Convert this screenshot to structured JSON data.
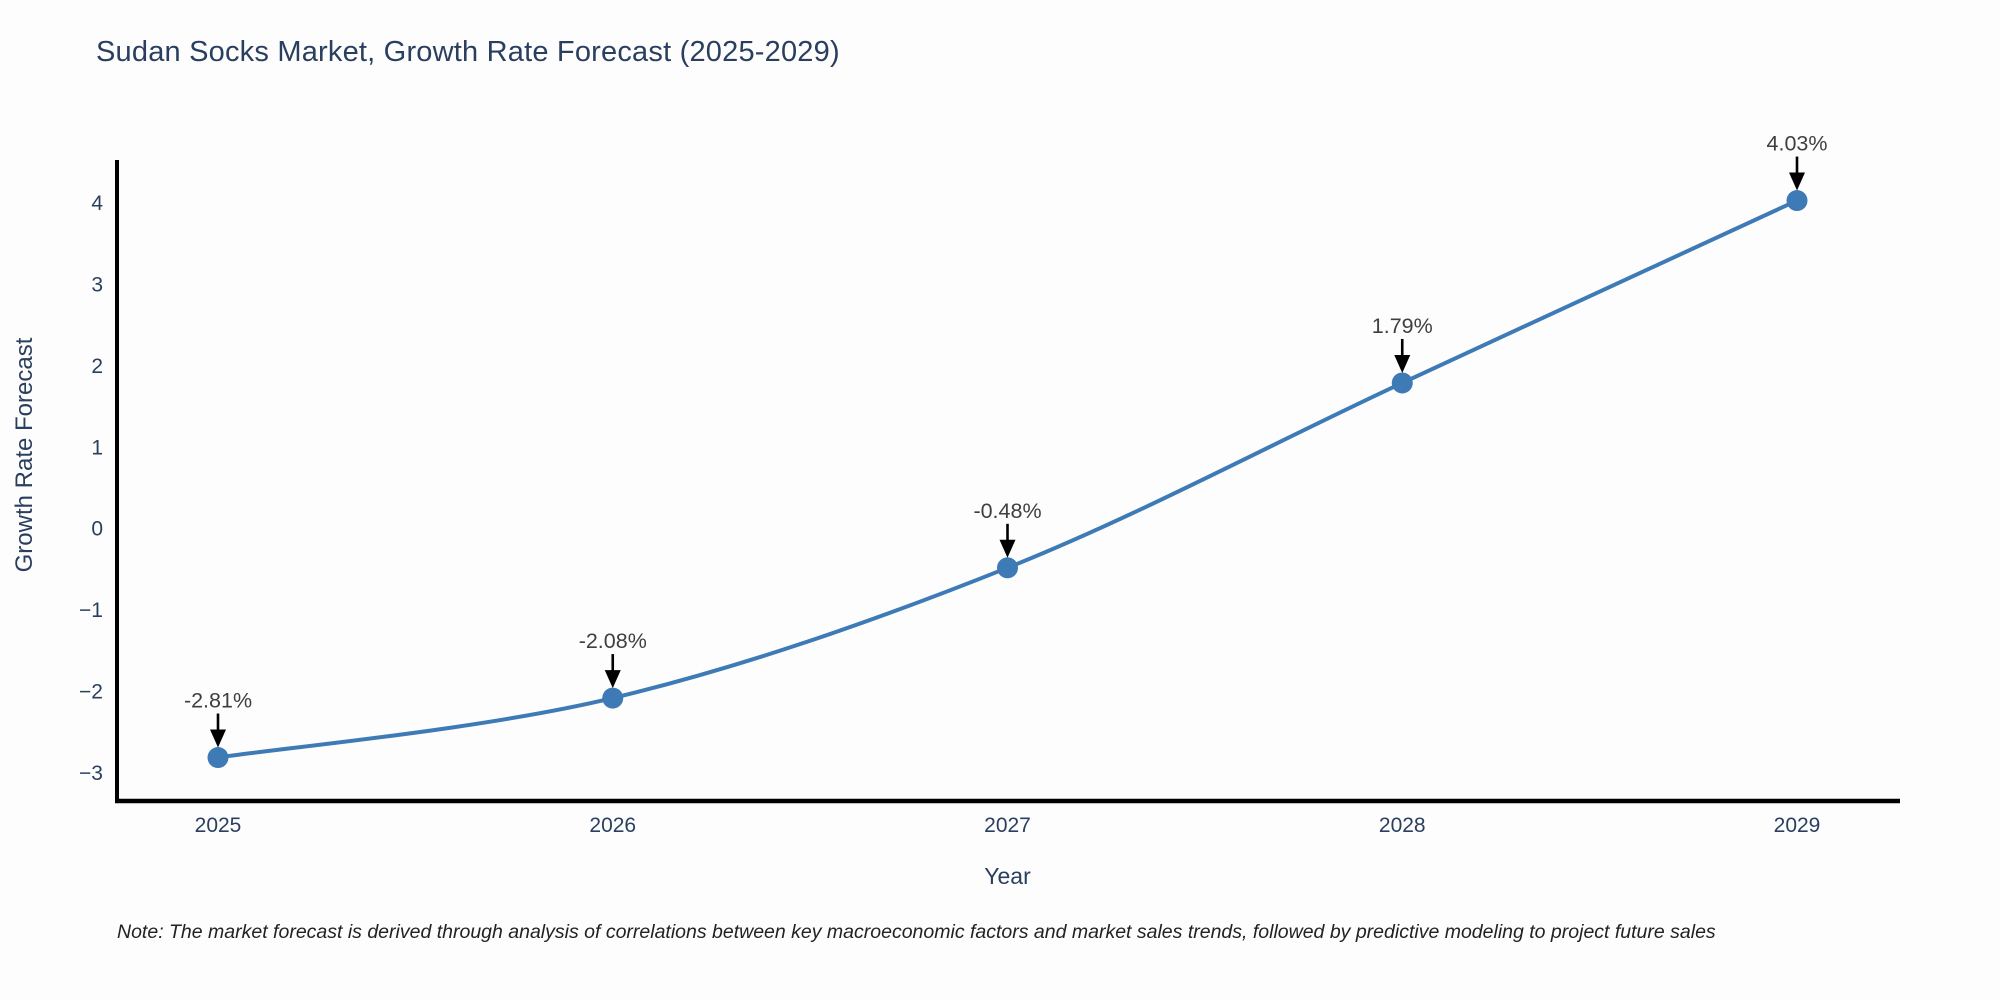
{
  "title": "Sudan Socks Market, Growth Rate Forecast (2025-2029)",
  "note": "Note: The market forecast is derived through analysis of correlations between key macroeconomic factors and market sales trends, followed by predictive modeling to project future sales",
  "chart_data": {
    "type": "line",
    "title": "Sudan Socks Market, Growth Rate Forecast (2025-2029)",
    "xlabel": "Year",
    "ylabel": "Growth Rate Forecast",
    "x": [
      2025,
      2026,
      2027,
      2028,
      2029
    ],
    "series": [
      {
        "name": "Growth Rate Forecast",
        "values": [
          -2.81,
          -2.08,
          -0.48,
          1.79,
          4.03
        ]
      }
    ],
    "point_labels": [
      "-2.81%",
      "-2.08%",
      "-0.48%",
      "1.79%",
      "4.03%"
    ],
    "yticks": [
      {
        "value": 4,
        "label": "4"
      },
      {
        "value": 3,
        "label": "3"
      },
      {
        "value": 2,
        "label": "2"
      },
      {
        "value": 1,
        "label": "1"
      },
      {
        "value": 0,
        "label": "0"
      },
      {
        "value": -1,
        "label": "−1"
      },
      {
        "value": -2,
        "label": "−2"
      },
      {
        "value": -3,
        "label": "−3"
      }
    ],
    "ylim": [
      -3.37,
      4.53
    ],
    "grid": false,
    "legend": "none",
    "line_style": "spline",
    "colors": {
      "line": "#3e7bb6",
      "marker": "#3e7bb6",
      "axis": "#000000",
      "title_text": "#2a3f5f",
      "tick_text": "#2a3f5f",
      "annotation_text": "#3f3f3f",
      "annotation_arrow": "#000000",
      "note_text": "#222222"
    }
  }
}
